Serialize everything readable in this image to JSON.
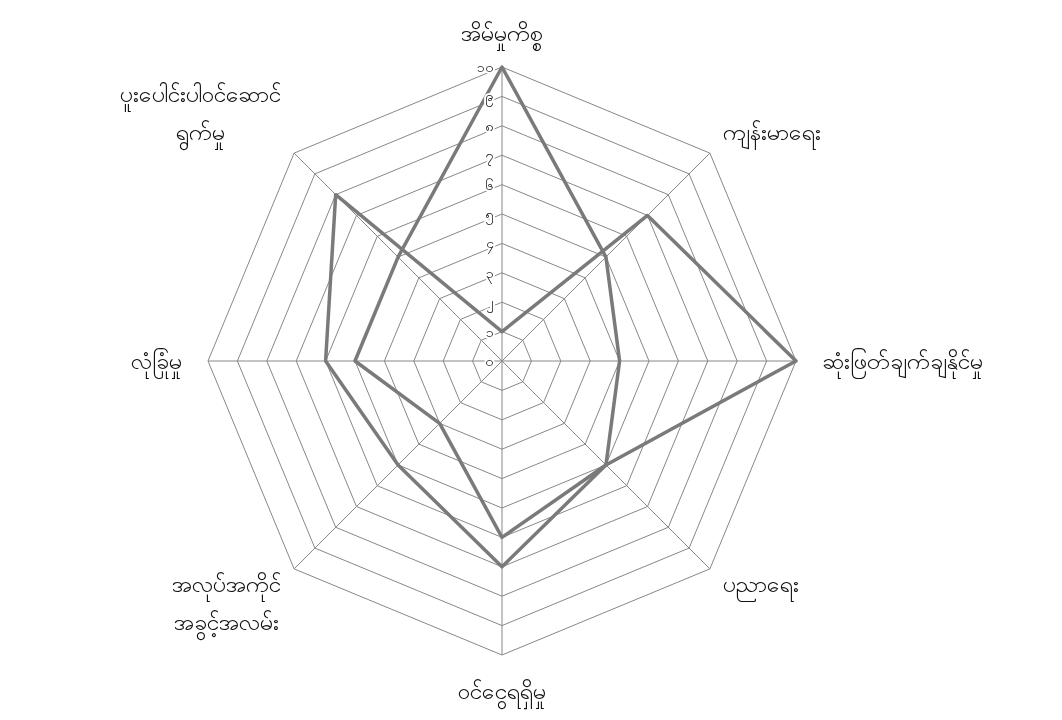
{
  "chart_data": {
    "type": "radar",
    "categories": [
      "အိမ်မှုကိစ္စ",
      "ကျန်းမာရေး",
      "ဆုံးဖြတ်ချက်ချနိုင်မှု",
      "ပညာရေး",
      "ဝင်ငွေရရှိမှု",
      "အလုပ်အကိုင်\nအခွင့်အလမ်း",
      "လုံခြုံမှု",
      "ပူးပေါင်းပါဝင်ဆောင်\nရွက်မှု"
    ],
    "series": [
      {
        "color": "#7a7a7a",
        "values": [
          10,
          5,
          4,
          5,
          6,
          3,
          5,
          5
        ]
      },
      {
        "color": "#7a7a7a",
        "values": [
          1,
          7,
          10,
          5,
          7,
          5,
          6,
          8
        ]
      }
    ],
    "ylim": [
      0,
      10
    ],
    "yticks": [
      {
        "value": 0,
        "label": "၀"
      },
      {
        "value": 1,
        "label": "၁"
      },
      {
        "value": 2,
        "label": "၂"
      },
      {
        "value": 3,
        "label": "၃"
      },
      {
        "value": 4,
        "label": "၄"
      },
      {
        "value": 5,
        "label": "၅"
      },
      {
        "value": 6,
        "label": "၆"
      },
      {
        "value": 7,
        "label": "၇"
      },
      {
        "value": 8,
        "label": "၈"
      },
      {
        "value": 9,
        "label": "၉"
      },
      {
        "value": 10,
        "label": "၁၀"
      }
    ],
    "grid": true,
    "line_style": "solid",
    "marker": "none"
  }
}
